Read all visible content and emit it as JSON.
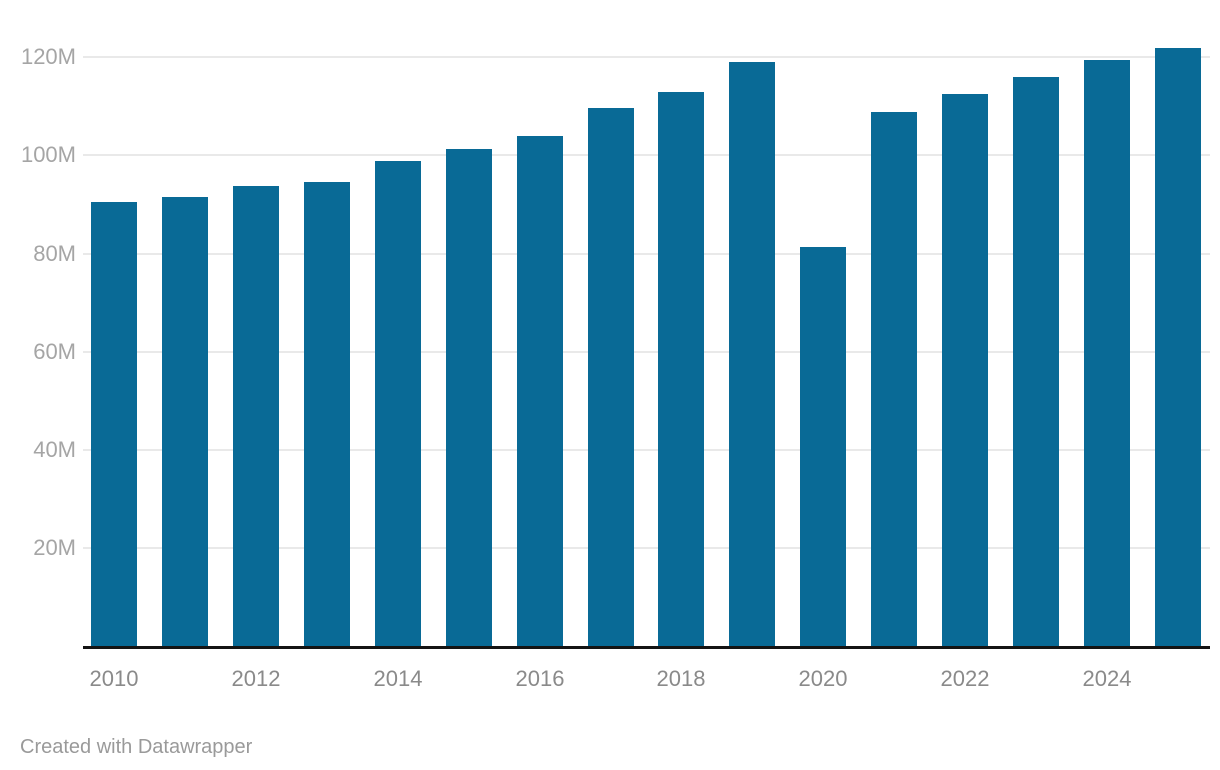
{
  "footer": {
    "attribution": "Created with Datawrapper"
  },
  "colors": {
    "bar": "#096a96",
    "grid": "#e9e9e9",
    "axis_line": "#141414",
    "y_label": "#a5a5a5",
    "x_label": "#8a8a8a",
    "footer_text": "#9a9a9a"
  },
  "chart_data": {
    "type": "bar",
    "title": "",
    "categories": [
      "2010",
      "2011",
      "2012",
      "2013",
      "2014",
      "2015",
      "2016",
      "2017",
      "2018",
      "2019",
      "2020",
      "2021",
      "2022",
      "2023",
      "2024",
      "2025"
    ],
    "values": [
      90.6,
      91.5,
      93.7,
      94.6,
      98.9,
      101.3,
      103.9,
      109.6,
      112.9,
      119.0,
      81.3,
      108.8,
      112.5,
      115.9,
      119.4,
      121.9
    ],
    "value_unit": "M",
    "xlabel": "",
    "ylabel": "",
    "ylim": [
      0,
      123.5
    ],
    "y_ticks": [
      20,
      40,
      60,
      80,
      100,
      120
    ],
    "y_tick_labels": [
      "20M",
      "40M",
      "60M",
      "80M",
      "100M",
      "120M"
    ],
    "x_tick_labels": [
      "2010",
      "2012",
      "2014",
      "2016",
      "2018",
      "2020",
      "2022",
      "2024"
    ],
    "x_tick_every": 2,
    "grid": "horizontal",
    "legend": "none"
  }
}
